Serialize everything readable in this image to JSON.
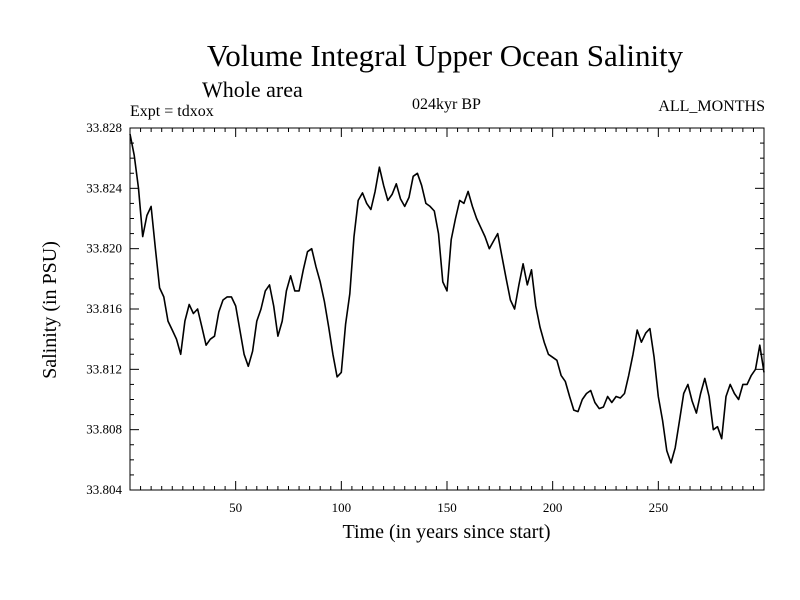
{
  "chart_data": {
    "type": "line",
    "title": "Volume Integral Upper Ocean Salinity",
    "subtitle": "Whole area",
    "annotations": {
      "left": "Expt = tdxox",
      "center": "024kyr BP",
      "right": "ALL_MONTHS"
    },
    "xlabel": "Time (in years since start)",
    "ylabel": "Salinity (in PSU)",
    "xlim": [
      0,
      300
    ],
    "ylim": [
      33.804,
      33.828
    ],
    "xticks": [
      50,
      100,
      150,
      200,
      250
    ],
    "yticks": [
      "33.804",
      "33.808",
      "33.812",
      "33.816",
      "33.820",
      "33.824",
      "33.828"
    ],
    "grid": false,
    "legend": "none",
    "line_color": "#000000",
    "series": [
      {
        "x": [
          0,
          2,
          4,
          6,
          8,
          10,
          12,
          14,
          16,
          18,
          20,
          22,
          24,
          26,
          28,
          30,
          32,
          34,
          36,
          38,
          40,
          42,
          44,
          46,
          48,
          50,
          52,
          54,
          56,
          58,
          60,
          62,
          64,
          66,
          68,
          70,
          72,
          74,
          76,
          78,
          80,
          82,
          84,
          86,
          88,
          90,
          92,
          94,
          96,
          98,
          100,
          102,
          104,
          106,
          108,
          110,
          112,
          114,
          116,
          118,
          120,
          122,
          124,
          126,
          128,
          130,
          132,
          134,
          136,
          138,
          140,
          142,
          144,
          146,
          148,
          150,
          152,
          154,
          156,
          158,
          160,
          162,
          164,
          166,
          168,
          170,
          172,
          174,
          176,
          178,
          180,
          182,
          184,
          186,
          188,
          190,
          192,
          194,
          196,
          198,
          200,
          202,
          204,
          206,
          208,
          210,
          212,
          214,
          216,
          218,
          220,
          222,
          224,
          226,
          228,
          230,
          232,
          234,
          236,
          238,
          240,
          242,
          244,
          246,
          248,
          250,
          252,
          254,
          256,
          258,
          260,
          262,
          264,
          266,
          268,
          270,
          272,
          274,
          276,
          278,
          280,
          282,
          284,
          286,
          288,
          290,
          292,
          294,
          296,
          298,
          300
        ],
        "values": [
          33.8276,
          33.8262,
          33.824,
          33.8208,
          33.8222,
          33.8228,
          33.82,
          33.8174,
          33.8168,
          33.8152,
          33.8146,
          33.814,
          33.813,
          33.8152,
          33.8163,
          33.8157,
          33.816,
          33.8148,
          33.8136,
          33.814,
          33.8142,
          33.8158,
          33.8166,
          33.8168,
          33.8168,
          33.8162,
          33.8146,
          33.813,
          33.8122,
          33.8132,
          33.8152,
          33.816,
          33.8172,
          33.8176,
          33.8162,
          33.8142,
          33.8152,
          33.8172,
          33.8182,
          33.8172,
          33.8172,
          33.8186,
          33.8198,
          33.82,
          33.8188,
          33.8178,
          33.8165,
          33.8148,
          33.813,
          33.8115,
          33.8118,
          33.815,
          33.817,
          33.8208,
          33.8232,
          33.8237,
          33.823,
          33.8226,
          33.8238,
          33.8254,
          33.8242,
          33.8232,
          33.8236,
          33.8243,
          33.8233,
          33.8228,
          33.8234,
          33.8248,
          33.825,
          33.8242,
          33.823,
          33.8228,
          33.8225,
          33.821,
          33.8178,
          33.8172,
          33.8206,
          33.822,
          33.8232,
          33.823,
          33.8238,
          33.8228,
          33.822,
          33.8214,
          33.8208,
          33.82,
          33.8205,
          33.821,
          33.8195,
          33.818,
          33.8166,
          33.816,
          33.8176,
          33.819,
          33.8176,
          33.8186,
          33.8162,
          33.8148,
          33.8138,
          33.813,
          33.8128,
          33.8126,
          33.8116,
          33.8112,
          33.8102,
          33.8093,
          33.8092,
          33.81,
          33.8104,
          33.8106,
          33.8098,
          33.8094,
          33.8095,
          33.8102,
          33.8098,
          33.8102,
          33.8101,
          33.8104,
          33.8116,
          33.813,
          33.8146,
          33.8138,
          33.8144,
          33.8147,
          33.8128,
          33.8102,
          33.8086,
          33.8066,
          33.8058,
          33.8068,
          33.8086,
          33.8104,
          33.811,
          33.8099,
          33.8091,
          33.8104,
          33.8114,
          33.8102,
          33.808,
          33.8082,
          33.8074,
          33.8102,
          33.811,
          33.8104,
          33.81,
          33.811,
          33.811,
          33.8116,
          33.812,
          33.8136,
          33.8118
        ]
      }
    ]
  }
}
